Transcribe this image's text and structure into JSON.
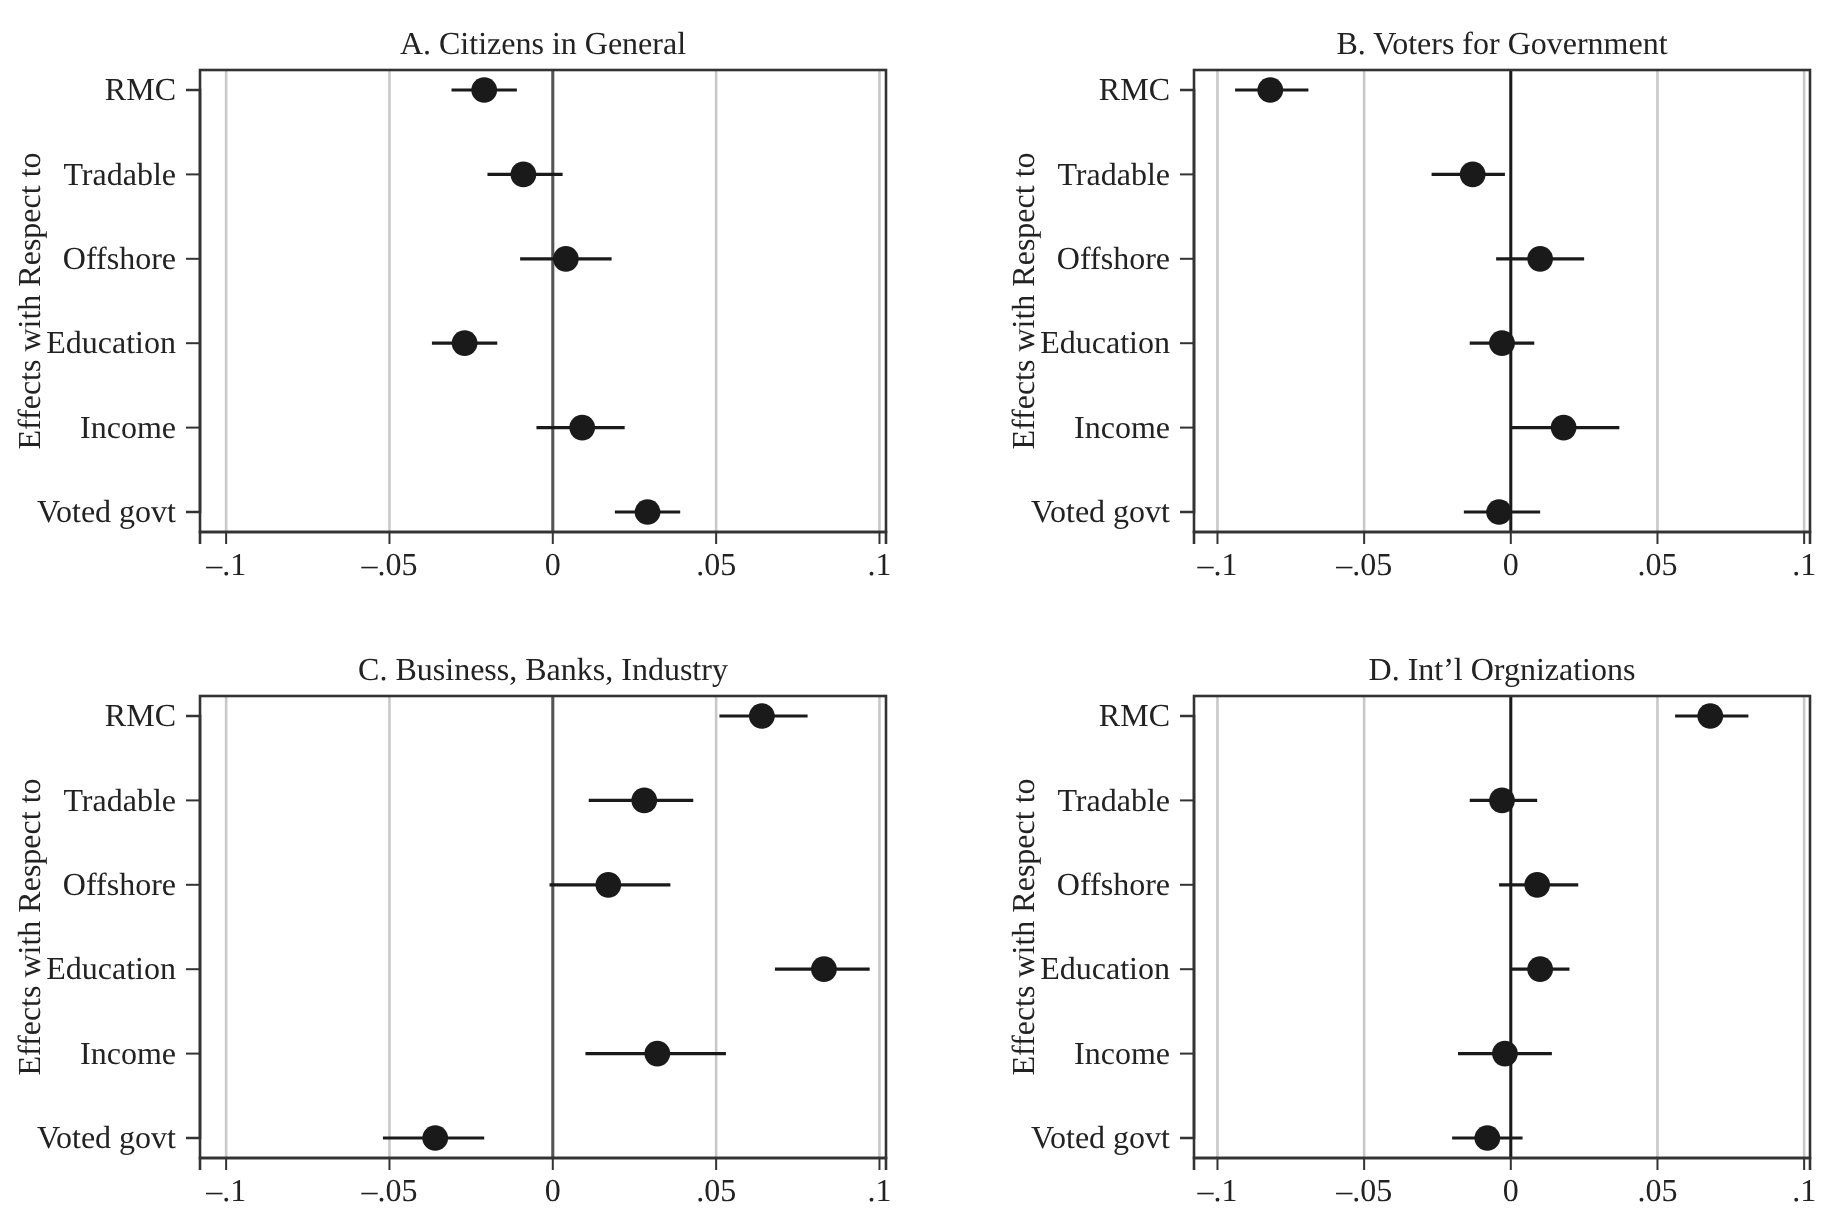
{
  "chart_data": [
    {
      "type": "scatter",
      "orientation": "horizontal",
      "title": "A. Citizens in General",
      "ylabel": "Effects with Respect to",
      "categories": [
        "RMC",
        "Tradable",
        "Offshore",
        "Education",
        "Income",
        "Voted govt"
      ],
      "series": [
        {
          "color": "#1a1a1a",
          "values": [
            -0.021,
            -0.009,
            0.004,
            -0.027,
            0.009,
            0.029
          ],
          "errors": [
            [
              -0.031,
              -0.011
            ],
            [
              -0.02,
              0.003
            ],
            [
              -0.01,
              0.018
            ],
            [
              -0.037,
              -0.017
            ],
            [
              -0.005,
              0.022
            ],
            [
              0.019,
              0.039
            ]
          ]
        }
      ],
      "xlim": [
        -0.108,
        0.102
      ],
      "xticks": [
        {
          "value": -0.1,
          "label": "–.1"
        },
        {
          "value": -0.05,
          "label": "–.05"
        },
        {
          "value": 0,
          "label": "0"
        },
        {
          "value": 0.05,
          "label": ".05"
        },
        {
          "value": 0.1,
          "label": ".1"
        }
      ],
      "grid": "x",
      "marker": "circle",
      "ref_lines": [
        {
          "axis": "x",
          "value": 0,
          "color": "#555555"
        }
      ]
    },
    {
      "type": "scatter",
      "orientation": "horizontal",
      "title": "B. Voters for Government",
      "ylabel": "Effects with Respect to",
      "categories": [
        "RMC",
        "Tradable",
        "Offshore",
        "Education",
        "Income",
        "Voted govt"
      ],
      "series": [
        {
          "color": "#1a1a1a",
          "values": [
            -0.082,
            -0.013,
            0.01,
            -0.003,
            0.018,
            -0.004
          ],
          "errors": [
            [
              -0.094,
              -0.069
            ],
            [
              -0.027,
              -0.002
            ],
            [
              -0.005,
              0.025
            ],
            [
              -0.014,
              0.008
            ],
            [
              0,
              0.037
            ],
            [
              -0.016,
              0.01
            ]
          ]
        }
      ],
      "xlim": [
        -0.108,
        0.102
      ],
      "xticks": [
        {
          "value": -0.1,
          "label": "–.1"
        },
        {
          "value": -0.05,
          "label": "–.05"
        },
        {
          "value": 0,
          "label": "0"
        },
        {
          "value": 0.05,
          "label": ".05"
        },
        {
          "value": 0.1,
          "label": ".1"
        }
      ],
      "grid": "x",
      "marker": "circle",
      "ref_lines": [
        {
          "axis": "x",
          "value": 0,
          "color": "#1a1a1a"
        }
      ]
    },
    {
      "type": "scatter",
      "orientation": "horizontal",
      "title": "C. Business, Banks, Industry",
      "ylabel": "Effects with Respect to",
      "categories": [
        "RMC",
        "Tradable",
        "Offshore",
        "Education",
        "Income",
        "Voted govt"
      ],
      "series": [
        {
          "color": "#1a1a1a",
          "values": [
            0.064,
            0.028,
            0.017,
            0.083,
            0.032,
            -0.036
          ],
          "errors": [
            [
              0.051,
              0.078
            ],
            [
              0.011,
              0.043
            ],
            [
              -0.001,
              0.036
            ],
            [
              0.068,
              0.097
            ],
            [
              0.01,
              0.053
            ],
            [
              -0.052,
              -0.021
            ]
          ]
        }
      ],
      "xlim": [
        -0.108,
        0.102
      ],
      "xticks": [
        {
          "value": -0.1,
          "label": "–.1"
        },
        {
          "value": -0.05,
          "label": "–.05"
        },
        {
          "value": 0,
          "label": "0"
        },
        {
          "value": 0.05,
          "label": ".05"
        },
        {
          "value": 0.1,
          "label": ".1"
        }
      ],
      "grid": "x",
      "marker": "circle",
      "ref_lines": [
        {
          "axis": "x",
          "value": 0,
          "color": "#555555"
        }
      ]
    },
    {
      "type": "scatter",
      "orientation": "horizontal",
      "title": "D. Int’l Orgnizations",
      "ylabel": "Effects with Respect to",
      "categories": [
        "RMC",
        "Tradable",
        "Offshore",
        "Education",
        "Income",
        "Voted govt"
      ],
      "series": [
        {
          "color": "#1a1a1a",
          "values": [
            0.068,
            -0.003,
            0.009,
            0.01,
            -0.002,
            -0.008
          ],
          "errors": [
            [
              0.056,
              0.081
            ],
            [
              -0.014,
              0.009
            ],
            [
              -0.004,
              0.023
            ],
            [
              0,
              0.02
            ],
            [
              -0.018,
              0.014
            ],
            [
              -0.02,
              0.004
            ]
          ]
        }
      ],
      "xlim": [
        -0.108,
        0.102
      ],
      "xticks": [
        {
          "value": -0.1,
          "label": "–.1"
        },
        {
          "value": -0.05,
          "label": "–.05"
        },
        {
          "value": 0,
          "label": "0"
        },
        {
          "value": 0.05,
          "label": ".05"
        },
        {
          "value": 0.1,
          "label": ".1"
        }
      ],
      "grid": "x",
      "marker": "circle",
      "ref_lines": [
        {
          "axis": "x",
          "value": 0,
          "color": "#1a1a1a"
        }
      ]
    }
  ]
}
